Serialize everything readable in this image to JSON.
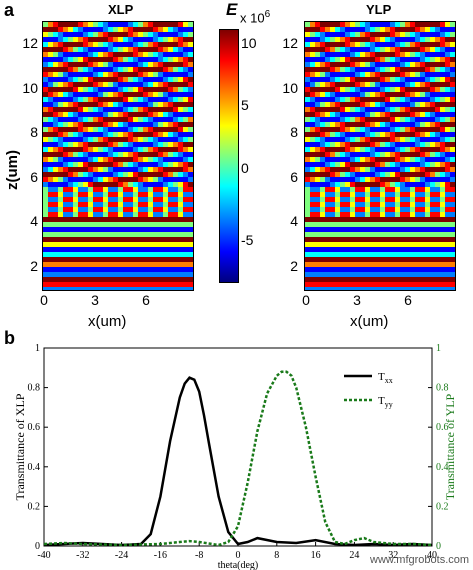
{
  "panel_a": {
    "letter": "a",
    "left_title": "XLP",
    "right_title": "YLP",
    "ylabel": "z(um)",
    "xlabel": "x(um)",
    "y_ticks": [
      "12",
      "10",
      "8",
      "6",
      "4",
      "2"
    ],
    "x_ticks": [
      "0",
      "3",
      "6"
    ],
    "colorbar": {
      "label": "E",
      "exponent": "x 10",
      "exponent_power": "6",
      "ticks": [
        "10",
        "5",
        "0",
        "-5"
      ]
    }
  },
  "panel_b": {
    "letter": "b",
    "watermark": "www.mfgrobots.com"
  },
  "chart_data": {
    "type": "line",
    "xlabel": "theta(deg)",
    "ylabel": "Transmittance of XLP",
    "ylabel_right": "Transmittance of YLP",
    "xlim": [
      -40,
      40
    ],
    "ylim": [
      0,
      1
    ],
    "ylim_right": [
      0,
      1
    ],
    "x_ticks": [
      "-40",
      "-32",
      "-24",
      "-16",
      "-8",
      "0",
      "8",
      "16",
      "24",
      "32",
      "40"
    ],
    "y_ticks": [
      "0",
      "0.2",
      "0.4",
      "0.6",
      "0.8",
      "1"
    ],
    "y_ticks_right": [
      "0",
      "0.2",
      "0.4",
      "0.6",
      "0.8",
      "1"
    ],
    "legend_placement": "top-right",
    "series_colors": {
      "xx": "#000000",
      "yy": "#1a7a1a"
    },
    "series": [
      {
        "name": "T",
        "subscript": "xx",
        "style": "solid",
        "x": [
          -40,
          -36,
          -32,
          -28,
          -24,
          -20,
          -18,
          -16,
          -14,
          -12,
          -11,
          -10,
          -9,
          -8,
          -7,
          -6,
          -4,
          -2,
          0,
          2,
          4,
          8,
          12,
          16,
          20,
          24,
          28,
          32,
          36,
          40
        ],
        "y": [
          0.005,
          0.01,
          0.015,
          0.01,
          0.005,
          0.01,
          0.06,
          0.25,
          0.53,
          0.75,
          0.82,
          0.85,
          0.84,
          0.78,
          0.66,
          0.52,
          0.25,
          0.07,
          0.01,
          0.02,
          0.04,
          0.02,
          0.015,
          0.03,
          0.01,
          0.005,
          0.01,
          0.005,
          0.01,
          0.005
        ]
      },
      {
        "name": "T",
        "subscript": "yy",
        "style": "dashed",
        "x": [
          -40,
          -36,
          -32,
          -24,
          -16,
          -12,
          -10,
          -8,
          -4,
          -2,
          0,
          2,
          4,
          6,
          8,
          9,
          10,
          11,
          12,
          14,
          16,
          18,
          20,
          22,
          24,
          26,
          28,
          32,
          36,
          40
        ],
        "y": [
          0.01,
          0.015,
          0.01,
          0.005,
          0.01,
          0.02,
          0.025,
          0.02,
          0.005,
          0.02,
          0.1,
          0.32,
          0.58,
          0.77,
          0.86,
          0.88,
          0.88,
          0.86,
          0.8,
          0.6,
          0.35,
          0.12,
          0.02,
          0.01,
          0.03,
          0.04,
          0.02,
          0.01,
          0.01,
          0.005
        ]
      }
    ]
  }
}
